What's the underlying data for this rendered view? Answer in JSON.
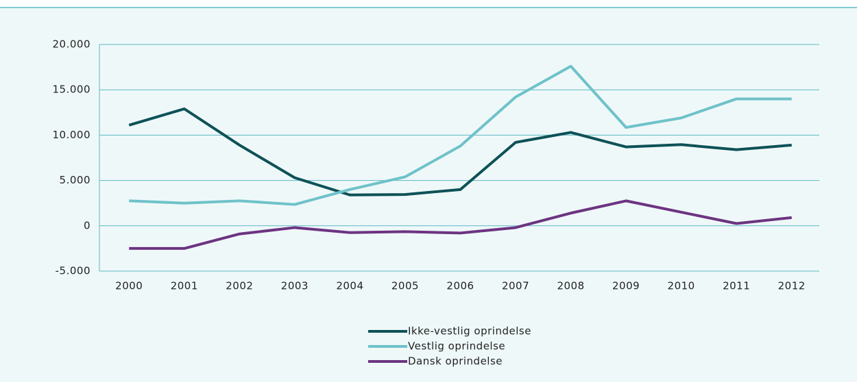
{
  "chart_data": {
    "type": "line",
    "categories": [
      "2000",
      "2001",
      "2002",
      "2003",
      "2004",
      "2005",
      "2006",
      "2007",
      "2008",
      "2009",
      "2010",
      "2011",
      "2012"
    ],
    "series": [
      {
        "name": "Ikke-vestlig oprindelse",
        "color": "#0d5257",
        "values": [
          11100,
          12900,
          8900,
          5300,
          3400,
          3450,
          4000,
          9200,
          10300,
          8700,
          8950,
          8400,
          8900
        ]
      },
      {
        "name": "Vestlig oprindelse",
        "color": "#6fc2c9",
        "values": [
          2750,
          2500,
          2750,
          2350,
          4000,
          5400,
          8800,
          14200,
          17600,
          10850,
          11900,
          14000,
          14000
        ]
      },
      {
        "name": "Dansk oprindelse",
        "color": "#6c3481",
        "values": [
          -2500,
          -2500,
          -900,
          -200,
          -750,
          -650,
          -800,
          -200,
          1400,
          2750,
          1500,
          250,
          900
        ]
      }
    ],
    "ylim": [
      -5000,
      20000
    ],
    "yticks": [
      {
        "value": -5000,
        "label": "-5.000"
      },
      0,
      {
        "value": 5000,
        "label": "5.000"
      },
      {
        "value": 10000,
        "label": "10.000"
      },
      {
        "value": 15000,
        "label": "15.000"
      },
      {
        "value": 20000,
        "label": "20.000"
      }
    ],
    "grid": true,
    "legend": "bottom"
  }
}
